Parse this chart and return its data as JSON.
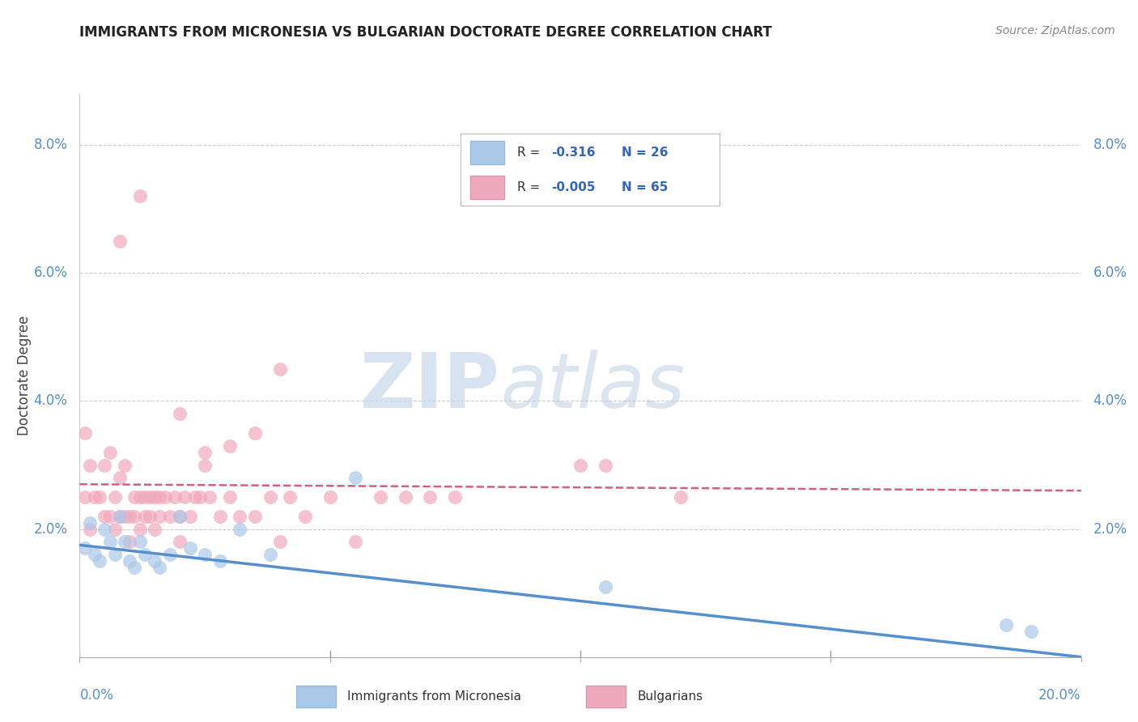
{
  "title": "IMMIGRANTS FROM MICRONESIA VS BULGARIAN DOCTORATE DEGREE CORRELATION CHART",
  "source": "Source: ZipAtlas.com",
  "ylabel": "Doctorate Degree",
  "x_min": 0.0,
  "x_max": 0.2,
  "y_min": 0.0,
  "y_max": 0.088,
  "y_ticks": [
    0.0,
    0.02,
    0.04,
    0.06,
    0.08
  ],
  "y_tick_labels": [
    "",
    "2.0%",
    "4.0%",
    "6.0%",
    "8.0%"
  ],
  "x_ticks": [
    0.0,
    0.05,
    0.1,
    0.15,
    0.2
  ],
  "blue_color": "#aac8e8",
  "pink_color": "#f0a8bc",
  "blue_line_color": "#5590cc",
  "pink_line_color": "#d06080",
  "watermark_zip": "ZIP",
  "watermark_atlas": "atlas",
  "blue_scatter_x": [
    0.001,
    0.002,
    0.003,
    0.004,
    0.005,
    0.006,
    0.007,
    0.008,
    0.009,
    0.01,
    0.011,
    0.012,
    0.013,
    0.015,
    0.016,
    0.018,
    0.02,
    0.022,
    0.025,
    0.028,
    0.032,
    0.038,
    0.055,
    0.105,
    0.185,
    0.19
  ],
  "blue_scatter_y": [
    0.017,
    0.021,
    0.016,
    0.015,
    0.02,
    0.018,
    0.016,
    0.022,
    0.018,
    0.015,
    0.014,
    0.018,
    0.016,
    0.015,
    0.014,
    0.016,
    0.022,
    0.017,
    0.016,
    0.015,
    0.02,
    0.016,
    0.028,
    0.011,
    0.005,
    0.004
  ],
  "pink_scatter_x": [
    0.001,
    0.001,
    0.002,
    0.002,
    0.003,
    0.004,
    0.005,
    0.005,
    0.006,
    0.006,
    0.007,
    0.007,
    0.008,
    0.008,
    0.009,
    0.009,
    0.01,
    0.01,
    0.011,
    0.011,
    0.012,
    0.012,
    0.013,
    0.013,
    0.014,
    0.014,
    0.015,
    0.015,
    0.016,
    0.016,
    0.017,
    0.018,
    0.019,
    0.02,
    0.02,
    0.021,
    0.022,
    0.023,
    0.024,
    0.025,
    0.026,
    0.028,
    0.03,
    0.032,
    0.035,
    0.038,
    0.04,
    0.042,
    0.045,
    0.05,
    0.055,
    0.06,
    0.065,
    0.07,
    0.075,
    0.1,
    0.12,
    0.02,
    0.025,
    0.03,
    0.035,
    0.04,
    0.105,
    0.008,
    0.012
  ],
  "pink_scatter_y": [
    0.035,
    0.025,
    0.03,
    0.02,
    0.025,
    0.025,
    0.022,
    0.03,
    0.032,
    0.022,
    0.025,
    0.02,
    0.028,
    0.022,
    0.03,
    0.022,
    0.022,
    0.018,
    0.025,
    0.022,
    0.025,
    0.02,
    0.022,
    0.025,
    0.025,
    0.022,
    0.025,
    0.02,
    0.022,
    0.025,
    0.025,
    0.022,
    0.025,
    0.022,
    0.018,
    0.025,
    0.022,
    0.025,
    0.025,
    0.032,
    0.025,
    0.022,
    0.025,
    0.022,
    0.022,
    0.025,
    0.018,
    0.025,
    0.022,
    0.025,
    0.018,
    0.025,
    0.025,
    0.025,
    0.025,
    0.03,
    0.025,
    0.038,
    0.03,
    0.033,
    0.035,
    0.045,
    0.03,
    0.065,
    0.072
  ],
  "blue_trend_x": [
    0.0,
    0.2
  ],
  "blue_trend_y": [
    0.0175,
    0.0
  ],
  "pink_trend_x": [
    0.0,
    0.2
  ],
  "pink_trend_y": [
    0.027,
    0.026
  ],
  "background_color": "#ffffff",
  "grid_color": "#cccccc"
}
